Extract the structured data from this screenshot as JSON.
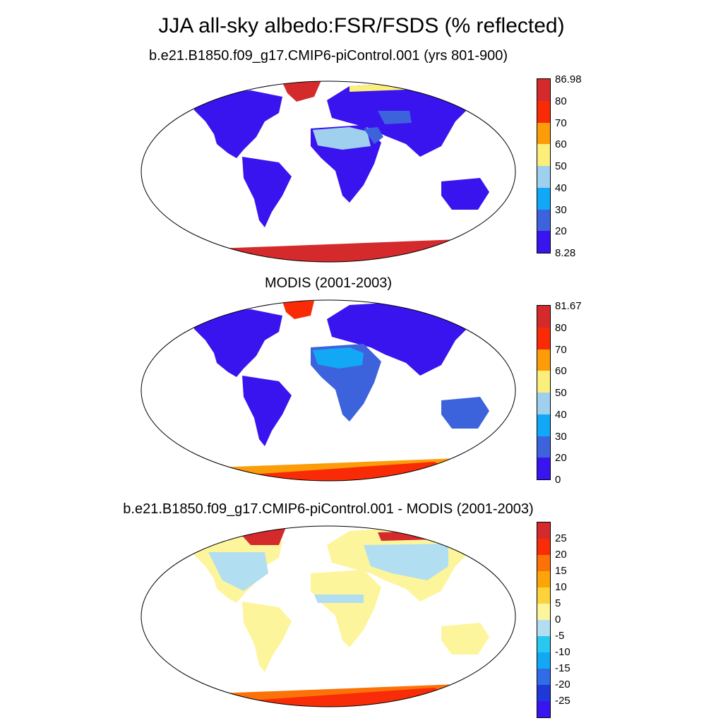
{
  "title": "JJA all-sky albedo:FSR/FSDS (% reflected)",
  "colors": {
    "seq": [
      "#3a14ee",
      "#3d63dc",
      "#13a8f5",
      "#9fd1ef",
      "#fcee7a",
      "#fc9c08",
      "#f92b06",
      "#d42a2c"
    ],
    "diff": [
      "#3a14ee",
      "#1e39d8",
      "#2f6ce5",
      "#13a8f5",
      "#29c8f0",
      "#b2def1",
      "#fdf59b",
      "#fcd33a",
      "#fca508",
      "#fc7208",
      "#f82c08",
      "#d42a2c"
    ],
    "land_model": "#3a14ee",
    "land_diff": "#fdf59b"
  },
  "panels": [
    {
      "title": "b.e21.B1850.f09_g17.CMIP6-piControl.001 (yrs 801-900)",
      "colorbar": {
        "max_label": "86.98",
        "min_label": "8.28",
        "ticks": [
          "80",
          "70",
          "60",
          "50",
          "40",
          "30",
          "20"
        ]
      }
    },
    {
      "title": "MODIS (2001-2003)",
      "colorbar": {
        "max_label": "81.67",
        "min_label": "",
        "ticks": [
          "80",
          "70",
          "60",
          "50",
          "40",
          "30",
          "20",
          "0"
        ]
      }
    },
    {
      "title": "b.e21.B1850.f09_g17.CMIP6-piControl.001 - MODIS (2001-2003)",
      "colorbar": {
        "max_label": "",
        "min_label": "",
        "ticks": [
          "25",
          "20",
          "15",
          "10",
          "5",
          "0",
          "-5",
          "-10",
          "-15",
          "-20",
          "-25"
        ]
      }
    }
  ]
}
